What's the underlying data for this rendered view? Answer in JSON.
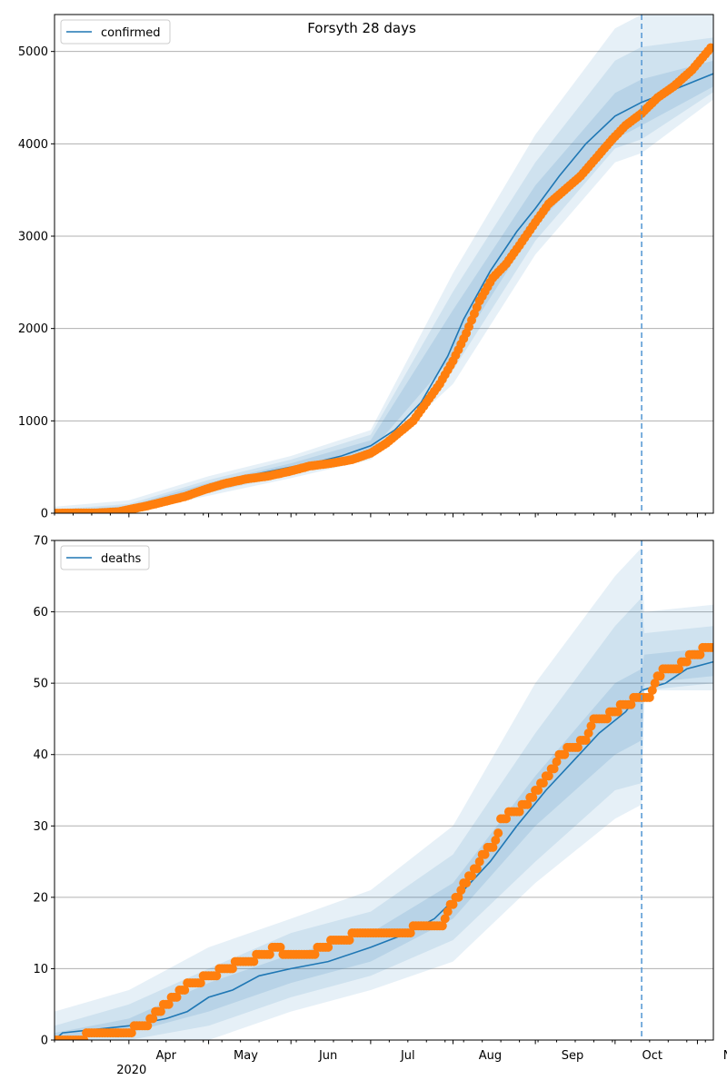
{
  "title": "Forsyth 28 days",
  "forecast_start": "2020-10-11",
  "chart_data": [
    {
      "type": "line",
      "title": "Forsyth 28 days",
      "legend": {
        "label": "confirmed",
        "position": "top-left"
      },
      "xlim": [
        "2020-03-04",
        "2020-11-07"
      ],
      "ylim": [
        0,
        5400
      ],
      "yticks": [
        0,
        1000,
        2000,
        3000,
        4000,
        5000
      ],
      "xtick_labels": [
        "Apr",
        "May",
        "Jun",
        "Jul",
        "Aug",
        "Sep",
        "Oct",
        "Nov"
      ],
      "grid": "horizontal",
      "model_mean": [
        [
          "2020-03-04",
          0
        ],
        [
          "2020-03-15",
          8
        ],
        [
          "2020-03-25",
          20
        ],
        [
          "2020-04-01",
          60
        ],
        [
          "2020-04-10",
          110
        ],
        [
          "2020-04-20",
          190
        ],
        [
          "2020-05-01",
          290
        ],
        [
          "2020-05-10",
          370
        ],
        [
          "2020-05-20",
          430
        ],
        [
          "2020-06-01",
          500
        ],
        [
          "2020-06-10",
          550
        ],
        [
          "2020-06-20",
          620
        ],
        [
          "2020-07-01",
          730
        ],
        [
          "2020-07-10",
          900
        ],
        [
          "2020-07-20",
          1200
        ],
        [
          "2020-07-30",
          1700
        ],
        [
          "2020-08-05",
          2100
        ],
        [
          "2020-08-15",
          2620
        ],
        [
          "2020-08-25",
          3050
        ],
        [
          "2020-09-01",
          3300
        ],
        [
          "2020-09-10",
          3650
        ],
        [
          "2020-09-20",
          4000
        ],
        [
          "2020-10-01",
          4300
        ],
        [
          "2020-10-11",
          4450
        ],
        [
          "2020-10-20",
          4550
        ],
        [
          "2020-11-07",
          4760
        ]
      ],
      "band_inner": [
        [
          "2020-03-04",
          0,
          20
        ],
        [
          "2020-04-01",
          40,
          80
        ],
        [
          "2020-05-01",
          250,
          330
        ],
        [
          "2020-06-01",
          460,
          540
        ],
        [
          "2020-07-01",
          670,
          790
        ],
        [
          "2020-08-01",
          1700,
          2200
        ],
        [
          "2020-09-01",
          3100,
          3550
        ],
        [
          "2020-10-01",
          4050,
          4550
        ],
        [
          "2020-10-11",
          4200,
          4700
        ],
        [
          "2020-11-07",
          4620,
          4900
        ]
      ],
      "band_mid": [
        [
          "2020-03-04",
          0,
          40
        ],
        [
          "2020-04-01",
          20,
          100
        ],
        [
          "2020-05-01",
          220,
          360
        ],
        [
          "2020-06-01",
          420,
          580
        ],
        [
          "2020-07-01",
          620,
          850
        ],
        [
          "2020-08-01",
          1550,
          2400
        ],
        [
          "2020-09-01",
          2950,
          3800
        ],
        [
          "2020-10-01",
          3950,
          4900
        ],
        [
          "2020-10-11",
          4050,
          5050
        ],
        [
          "2020-11-07",
          4560,
          5150
        ]
      ],
      "band_outer": [
        [
          "2020-03-04",
          0,
          70
        ],
        [
          "2020-04-01",
          10,
          140
        ],
        [
          "2020-05-01",
          190,
          400
        ],
        [
          "2020-06-01",
          380,
          620
        ],
        [
          "2020-07-01",
          580,
          900
        ],
        [
          "2020-08-01",
          1400,
          2600
        ],
        [
          "2020-09-01",
          2800,
          4100
        ],
        [
          "2020-10-01",
          3800,
          5250
        ],
        [
          "2020-10-11",
          3900,
          5400
        ],
        [
          "2020-11-07",
          4480,
          5400
        ]
      ],
      "observed": [
        [
          "2020-03-04",
          0
        ],
        [
          "2020-03-20",
          3
        ],
        [
          "2020-03-28",
          15
        ],
        [
          "2020-04-02",
          45
        ],
        [
          "2020-04-08",
          80
        ],
        [
          "2020-04-15",
          130
        ],
        [
          "2020-04-22",
          180
        ],
        [
          "2020-04-30",
          260
        ],
        [
          "2020-05-07",
          320
        ],
        [
          "2020-05-15",
          370
        ],
        [
          "2020-05-23",
          400
        ],
        [
          "2020-05-31",
          450
        ],
        [
          "2020-06-08",
          510
        ],
        [
          "2020-06-16",
          540
        ],
        [
          "2020-06-24",
          580
        ],
        [
          "2020-07-01",
          650
        ],
        [
          "2020-07-07",
          760
        ],
        [
          "2020-07-12",
          880
        ],
        [
          "2020-07-17",
          1000
        ],
        [
          "2020-07-22",
          1200
        ],
        [
          "2020-07-27",
          1400
        ],
        [
          "2020-08-01",
          1650
        ],
        [
          "2020-08-06",
          1950
        ],
        [
          "2020-08-11",
          2300
        ],
        [
          "2020-08-16",
          2550
        ],
        [
          "2020-08-21",
          2700
        ],
        [
          "2020-08-26",
          2900
        ],
        [
          "2020-09-01",
          3150
        ],
        [
          "2020-09-06",
          3350
        ],
        [
          "2020-09-12",
          3500
        ],
        [
          "2020-09-18",
          3650
        ],
        [
          "2020-09-24",
          3850
        ],
        [
          "2020-09-30",
          4050
        ],
        [
          "2020-10-05",
          4200
        ],
        [
          "2020-10-11",
          4330
        ],
        [
          "2020-10-17",
          4500
        ],
        [
          "2020-10-23",
          4620
        ],
        [
          "2020-10-30",
          4800
        ],
        [
          "2020-11-06",
          5040
        ]
      ]
    },
    {
      "type": "line",
      "legend": {
        "label": "deaths",
        "position": "top-left"
      },
      "xlim": [
        "2020-03-04",
        "2020-11-07"
      ],
      "ylim": [
        0,
        70
      ],
      "yticks": [
        0,
        10,
        20,
        30,
        40,
        50,
        60,
        70
      ],
      "xtick_labels": [
        "Apr",
        "May",
        "Jun",
        "Jul",
        "Aug",
        "Sep",
        "Oct",
        "Nov"
      ],
      "x_year_label": "2020",
      "grid": "horizontal",
      "model_mean": [
        [
          "2020-03-04",
          0
        ],
        [
          "2020-03-07",
          1
        ],
        [
          "2020-04-01",
          2
        ],
        [
          "2020-04-15",
          3
        ],
        [
          "2020-04-23",
          4
        ],
        [
          "2020-05-01",
          6
        ],
        [
          "2020-05-10",
          7
        ],
        [
          "2020-05-20",
          9
        ],
        [
          "2020-06-01",
          10
        ],
        [
          "2020-06-15",
          11
        ],
        [
          "2020-07-01",
          13
        ],
        [
          "2020-07-15",
          15
        ],
        [
          "2020-07-25",
          17
        ],
        [
          "2020-08-05",
          21
        ],
        [
          "2020-08-15",
          25
        ],
        [
          "2020-08-25",
          30
        ],
        [
          "2020-09-05",
          35
        ],
        [
          "2020-09-15",
          39
        ],
        [
          "2020-09-25",
          43
        ],
        [
          "2020-10-05",
          46
        ],
        [
          "2020-10-11",
          49
        ],
        [
          "2020-10-20",
          50
        ],
        [
          "2020-10-28",
          52
        ],
        [
          "2020-11-07",
          53
        ]
      ],
      "band_inner": [
        [
          "2020-03-04",
          0,
          1
        ],
        [
          "2020-04-01",
          1,
          3
        ],
        [
          "2020-05-01",
          4,
          8
        ],
        [
          "2020-06-01",
          8,
          12
        ],
        [
          "2020-07-01",
          11,
          15
        ],
        [
          "2020-08-01",
          17,
          22
        ],
        [
          "2020-09-01",
          30,
          37
        ],
        [
          "2020-10-01",
          40,
          50
        ],
        [
          "2020-10-11",
          42,
          52
        ],
        [
          "2020-10-12",
          50,
          54
        ],
        [
          "2020-11-07",
          51,
          55
        ]
      ],
      "band_mid": [
        [
          "2020-03-04",
          0,
          2
        ],
        [
          "2020-04-01",
          0,
          5
        ],
        [
          "2020-05-01",
          2,
          10
        ],
        [
          "2020-06-01",
          6,
          15
        ],
        [
          "2020-07-01",
          9,
          18
        ],
        [
          "2020-08-01",
          14,
          26
        ],
        [
          "2020-09-01",
          25,
          43
        ],
        [
          "2020-10-01",
          35,
          58
        ],
        [
          "2020-10-11",
          36,
          62
        ],
        [
          "2020-10-12",
          49,
          57
        ],
        [
          "2020-11-07",
          50,
          58
        ]
      ],
      "band_outer": [
        [
          "2020-03-04",
          0,
          4
        ],
        [
          "2020-04-01",
          0,
          7
        ],
        [
          "2020-05-01",
          0,
          13
        ],
        [
          "2020-06-01",
          4,
          17
        ],
        [
          "2020-07-01",
          7,
          21
        ],
        [
          "2020-08-01",
          11,
          30
        ],
        [
          "2020-09-01",
          22,
          50
        ],
        [
          "2020-10-01",
          31,
          65
        ],
        [
          "2020-10-11",
          33,
          69
        ],
        [
          "2020-10-12",
          49,
          60
        ],
        [
          "2020-11-07",
          49,
          61
        ]
      ],
      "observed": [
        [
          "2020-03-04",
          0
        ],
        [
          "2020-03-28",
          1
        ],
        [
          "2020-04-08",
          2
        ],
        [
          "2020-04-12",
          4
        ],
        [
          "2020-04-15",
          5
        ],
        [
          "2020-04-21",
          7
        ],
        [
          "2020-04-25",
          8
        ],
        [
          "2020-05-03",
          9
        ],
        [
          "2020-05-06",
          10
        ],
        [
          "2020-05-15",
          11
        ],
        [
          "2020-05-23",
          12
        ],
        [
          "2020-05-27",
          13
        ],
        [
          "2020-05-29",
          12
        ],
        [
          "2020-06-10",
          12
        ],
        [
          "2020-06-12",
          13
        ],
        [
          "2020-06-20",
          14
        ],
        [
          "2020-06-28",
          15
        ],
        [
          "2020-07-15",
          15
        ],
        [
          "2020-07-18",
          16
        ],
        [
          "2020-07-28",
          16
        ],
        [
          "2020-07-30",
          18
        ],
        [
          "2020-08-01",
          19
        ],
        [
          "2020-08-03",
          20
        ],
        [
          "2020-08-05",
          22
        ],
        [
          "2020-08-10",
          24
        ],
        [
          "2020-08-12",
          26
        ],
        [
          "2020-08-16",
          27
        ],
        [
          "2020-08-18",
          29
        ],
        [
          "2020-08-19",
          31
        ],
        [
          "2020-08-25",
          32
        ],
        [
          "2020-08-28",
          33
        ],
        [
          "2020-09-02",
          35
        ],
        [
          "2020-09-03",
          36
        ],
        [
          "2020-09-08",
          38
        ],
        [
          "2020-09-10",
          40
        ],
        [
          "2020-09-16",
          41
        ],
        [
          "2020-09-20",
          42
        ],
        [
          "2020-09-22",
          44
        ],
        [
          "2020-09-23",
          45
        ],
        [
          "2020-09-28",
          45
        ],
        [
          "2020-09-30",
          46
        ],
        [
          "2020-10-05",
          47
        ],
        [
          "2020-10-10",
          48
        ],
        [
          "2020-10-14",
          48
        ],
        [
          "2020-10-16",
          50
        ],
        [
          "2020-10-18",
          51
        ],
        [
          "2020-10-20",
          52
        ],
        [
          "2020-10-25",
          52
        ],
        [
          "2020-10-27",
          53
        ],
        [
          "2020-10-30",
          54
        ],
        [
          "2020-11-02",
          54
        ],
        [
          "2020-11-04",
          55
        ],
        [
          "2020-11-07",
          55
        ]
      ]
    }
  ],
  "colors": {
    "model_line": "#1f77b4",
    "band": "#1f77b4",
    "observed": "#ff7f0e",
    "forecast_line": "#5b9bd5",
    "grid": "#b0b0b0"
  }
}
